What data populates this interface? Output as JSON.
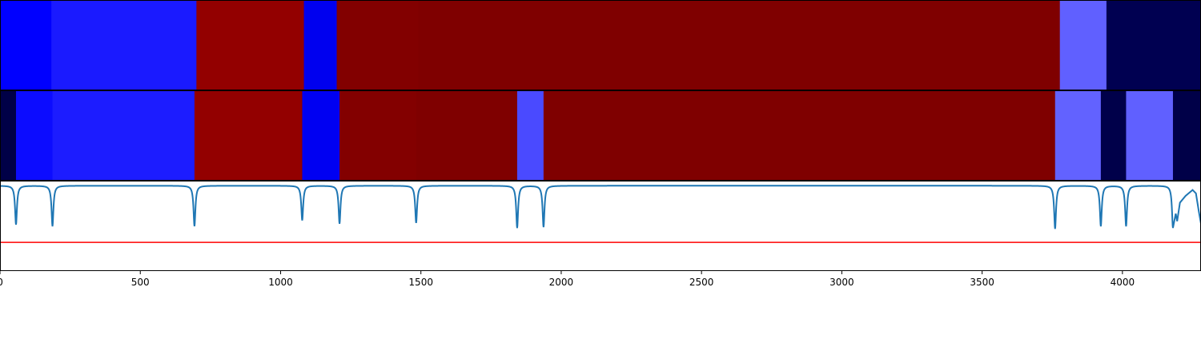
{
  "chart_data": {
    "type": "heatmap",
    "title": "",
    "xlabel": "",
    "ylabel": "",
    "xlim": [
      0,
      4280
    ],
    "grid": false,
    "legend": "none",
    "x_ticks": [
      {
        "value": 0,
        "label": "0"
      },
      {
        "value": 500,
        "label": "500"
      },
      {
        "value": 1000,
        "label": "1000"
      },
      {
        "value": 1500,
        "label": "1500"
      },
      {
        "value": 2000,
        "label": "2000"
      },
      {
        "value": 2500,
        "label": "2500"
      },
      {
        "value": 3000,
        "label": "3000"
      },
      {
        "value": 3500,
        "label": "3500"
      },
      {
        "value": 4000,
        "label": "4000"
      }
    ],
    "segment_tracks": [
      {
        "segments": [
          {
            "start": 0,
            "end": 183,
            "color": "#0000ff"
          },
          {
            "start": 183,
            "end": 700,
            "color": "#1a1aff"
          },
          {
            "start": 700,
            "end": 1083,
            "color": "#930000"
          },
          {
            "start": 1083,
            "end": 1200,
            "color": "#0000ef"
          },
          {
            "start": 1200,
            "end": 1490,
            "color": "#820000"
          },
          {
            "start": 1490,
            "end": 3777,
            "color": "#7f0000"
          },
          {
            "start": 3777,
            "end": 3943,
            "color": "#6060ff"
          },
          {
            "start": 3943,
            "end": 4280,
            "color": "#000051"
          }
        ]
      },
      {
        "segments": [
          {
            "start": 0,
            "end": 57,
            "color": "#000047"
          },
          {
            "start": 57,
            "end": 187,
            "color": "#0c0cff"
          },
          {
            "start": 187,
            "end": 693,
            "color": "#1c1cff"
          },
          {
            "start": 693,
            "end": 1077,
            "color": "#930000"
          },
          {
            "start": 1077,
            "end": 1210,
            "color": "#0000f2"
          },
          {
            "start": 1210,
            "end": 1483,
            "color": "#830000"
          },
          {
            "start": 1483,
            "end": 1843,
            "color": "#7f0000"
          },
          {
            "start": 1843,
            "end": 1937,
            "color": "#4a4aff"
          },
          {
            "start": 1937,
            "end": 3760,
            "color": "#7f0000"
          },
          {
            "start": 3760,
            "end": 3923,
            "color": "#6262ff"
          },
          {
            "start": 3923,
            "end": 4013,
            "color": "#00004a"
          },
          {
            "start": 4013,
            "end": 4180,
            "color": "#6060ff"
          },
          {
            "start": 4180,
            "end": 4280,
            "color": "#000048"
          }
        ]
      }
    ],
    "signal": {
      "color": "#1f77b4",
      "ylim": [
        -1,
        0.05
      ],
      "baseline": 0,
      "dips": [
        {
          "x": 57,
          "depth": 0.46
        },
        {
          "x": 187,
          "depth": 0.48
        },
        {
          "x": 693,
          "depth": 0.48
        },
        {
          "x": 1077,
          "depth": 0.41
        },
        {
          "x": 1210,
          "depth": 0.45
        },
        {
          "x": 1483,
          "depth": 0.44
        },
        {
          "x": 1843,
          "depth": 0.5
        },
        {
          "x": 1937,
          "depth": 0.49
        },
        {
          "x": 3760,
          "depth": 0.51
        },
        {
          "x": 3923,
          "depth": 0.48
        },
        {
          "x": 4013,
          "depth": 0.48
        },
        {
          "x": 4180,
          "depth": 0.5
        }
      ],
      "tail": [
        {
          "x": 4180,
          "y": -0.5
        },
        {
          "x": 4190,
          "y": -0.33
        },
        {
          "x": 4195,
          "y": -0.42
        },
        {
          "x": 4205,
          "y": -0.2
        },
        {
          "x": 4225,
          "y": -0.12
        },
        {
          "x": 4250,
          "y": -0.05
        },
        {
          "x": 4262,
          "y": -0.09
        },
        {
          "x": 4272,
          "y": -0.3
        },
        {
          "x": 4280,
          "y": -0.45
        }
      ]
    },
    "threshold": {
      "color": "#ff0000",
      "y": -0.67
    }
  }
}
